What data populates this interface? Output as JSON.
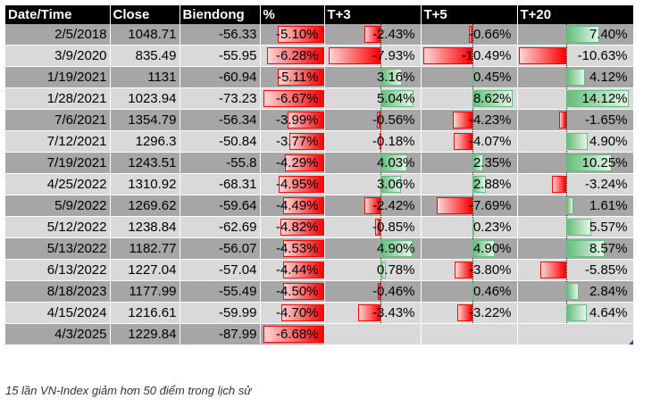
{
  "table": {
    "headers": [
      "Date/Time",
      "Close",
      "Biendong",
      "%",
      "T+3",
      "T+5",
      "T+20"
    ],
    "rows": [
      {
        "date": "2/5/2018",
        "close": "1048.71",
        "biendong": "-56.33",
        "pct": "-5.10%",
        "pct_v": -5.1,
        "t3": "-2.43%",
        "t3_v": -2.43,
        "t5": "-0.66%",
        "t5_v": -0.66,
        "t20": "7.40%",
        "t20_v": 7.4
      },
      {
        "date": "3/9/2020",
        "close": "835.49",
        "biendong": "-55.95",
        "pct": "-6.28%",
        "pct_v": -6.28,
        "t3": "-7.93%",
        "t3_v": -7.93,
        "t5": "-10.49%",
        "t5_v": -10.49,
        "t20": "-10.63%",
        "t20_v": -10.63
      },
      {
        "date": "1/19/2021",
        "close": "1131",
        "biendong": "-60.94",
        "pct": "-5.11%",
        "pct_v": -5.11,
        "t3": "3.16%",
        "t3_v": 3.16,
        "t5": "0.45%",
        "t5_v": 0.45,
        "t20": "4.12%",
        "t20_v": 4.12
      },
      {
        "date": "1/28/2021",
        "close": "1023.94",
        "biendong": "-73.23",
        "pct": "-6.67%",
        "pct_v": -6.67,
        "t3": "5.04%",
        "t3_v": 5.04,
        "t5": "8.62%",
        "t5_v": 8.62,
        "t20": "14.12%",
        "t20_v": 14.12
      },
      {
        "date": "7/6/2021",
        "close": "1354.79",
        "biendong": "-56.34",
        "pct": "-3.99%",
        "pct_v": -3.99,
        "t3": "-0.56%",
        "t3_v": -0.56,
        "t5": "-4.23%",
        "t5_v": -4.23,
        "t20": "-1.65%",
        "t20_v": -1.65
      },
      {
        "date": "7/12/2021",
        "close": "1296.3",
        "biendong": "-50.84",
        "pct": "-3.77%",
        "pct_v": -3.77,
        "t3": "-0.18%",
        "t3_v": -0.18,
        "t5": "-4.07%",
        "t5_v": -4.07,
        "t20": "4.90%",
        "t20_v": 4.9
      },
      {
        "date": "7/19/2021",
        "close": "1243.51",
        "biendong": "-55.8",
        "pct": "-4.29%",
        "pct_v": -4.29,
        "t3": "4.03%",
        "t3_v": 4.03,
        "t5": "2.35%",
        "t5_v": 2.35,
        "t20": "10.25%",
        "t20_v": 10.25
      },
      {
        "date": "4/25/2022",
        "close": "1310.92",
        "biendong": "-68.31",
        "pct": "-4.95%",
        "pct_v": -4.95,
        "t3": "3.06%",
        "t3_v": 3.06,
        "t5": "2.88%",
        "t5_v": 2.88,
        "t20": "-3.24%",
        "t20_v": -3.24
      },
      {
        "date": "5/9/2022",
        "close": "1269.62",
        "biendong": "-59.64",
        "pct": "-4.49%",
        "pct_v": -4.49,
        "t3": "-2.42%",
        "t3_v": -2.42,
        "t5": "-7.69%",
        "t5_v": -7.69,
        "t20": "1.61%",
        "t20_v": 1.61
      },
      {
        "date": "5/12/2022",
        "close": "1238.84",
        "biendong": "-62.69",
        "pct": "-4.82%",
        "pct_v": -4.82,
        "t3": "-0.85%",
        "t3_v": -0.85,
        "t5": "0.23%",
        "t5_v": 0.23,
        "t20": "5.57%",
        "t20_v": 5.57
      },
      {
        "date": "5/13/2022",
        "close": "1182.77",
        "biendong": "-56.07",
        "pct": "-4.53%",
        "pct_v": -4.53,
        "t3": "4.90%",
        "t3_v": 4.9,
        "t5": "4.90%",
        "t5_v": 4.9,
        "t20": "8.57%",
        "t20_v": 8.57
      },
      {
        "date": "6/13/2022",
        "close": "1227.04",
        "biendong": "-57.04",
        "pct": "-4.44%",
        "pct_v": -4.44,
        "t3": "0.78%",
        "t3_v": 0.78,
        "t5": "-3.80%",
        "t5_v": -3.8,
        "t20": "-5.85%",
        "t20_v": -5.85
      },
      {
        "date": "8/18/2023",
        "close": "1177.99",
        "biendong": "-55.49",
        "pct": "-4.50%",
        "pct_v": -4.5,
        "t3": "-0.46%",
        "t3_v": -0.46,
        "t5": "0.46%",
        "t5_v": 0.46,
        "t20": "2.84%",
        "t20_v": 2.84
      },
      {
        "date": "4/15/2024",
        "close": "1216.61",
        "biendong": "-59.99",
        "pct": "-4.70%",
        "pct_v": -4.7,
        "t3": "-3.43%",
        "t3_v": -3.43,
        "t5": "-3.22%",
        "t5_v": -3.22,
        "t20": "4.64%",
        "t20_v": 4.64
      },
      {
        "date": "4/3/2025",
        "close": "1229.84",
        "biendong": "-87.99",
        "pct": "-6.68%",
        "pct_v": -6.68,
        "t3": "",
        "t3_v": null,
        "t5": "",
        "t5_v": null,
        "t20": "",
        "t20_v": null
      }
    ]
  },
  "caption": "15 lần VN-Index giảm hơn 50 điểm trong lịch sử",
  "colors": {
    "negative": "#ff0000",
    "positive": "#63be7b",
    "header_bg": "#000000",
    "row_dark": "#a6a6a6",
    "row_light": "#d9d9d9"
  }
}
